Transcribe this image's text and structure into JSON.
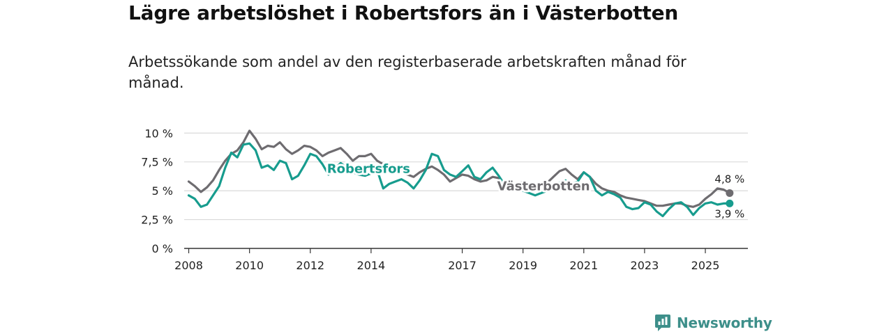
{
  "chart_data": {
    "type": "line",
    "title": "Lägre arbetslöshet i Robertsfors än i Västerbotten",
    "subtitle": "Arbetssökande som andel av den registerbaserade arbetskraften månad för månad.",
    "ylim": [
      0,
      10.8
    ],
    "xlim": [
      2007.85,
      2026.4
    ],
    "y_ticks": [
      0,
      2.5,
      5,
      7.5,
      10
    ],
    "y_tick_labels": [
      "0 %",
      "2,5 %",
      "5 %",
      "7,5 %",
      "10 %"
    ],
    "x_ticks": [
      2008,
      2010,
      2012,
      2014,
      2017,
      2019,
      2021,
      2023,
      2025
    ],
    "x_tick_labels": [
      "2008",
      "2010",
      "2012",
      "2014",
      "2017",
      "2019",
      "2021",
      "2023",
      "2025"
    ],
    "grid": "horizontal",
    "series": [
      {
        "name": "Västerbotten",
        "label": "Västerbotten",
        "color": "#6e6c70",
        "end_label": "4,8 %",
        "x": [
          2008.0,
          2008.2,
          2008.4,
          2008.6,
          2008.8,
          2009.0,
          2009.2,
          2009.4,
          2009.6,
          2009.8,
          2010.0,
          2010.2,
          2010.4,
          2010.6,
          2010.8,
          2011.0,
          2011.2,
          2011.4,
          2011.6,
          2011.8,
          2012.0,
          2012.2,
          2012.4,
          2012.6,
          2012.8,
          2013.0,
          2013.2,
          2013.4,
          2013.6,
          2013.8,
          2014.0,
          2014.2,
          2014.4,
          2014.6,
          2014.8,
          2015.0,
          2015.2,
          2015.4,
          2015.6,
          2015.8,
          2016.0,
          2016.2,
          2016.4,
          2016.6,
          2016.8,
          2017.0,
          2017.2,
          2017.4,
          2017.6,
          2017.8,
          2018.0,
          2018.2,
          2018.4,
          2018.6,
          2018.8,
          2019.0,
          2019.2,
          2019.4,
          2019.6,
          2019.8,
          2020.0,
          2020.2,
          2020.4,
          2020.6,
          2020.8,
          2021.0,
          2021.2,
          2021.4,
          2021.6,
          2021.8,
          2022.0,
          2022.2,
          2022.4,
          2022.6,
          2022.8,
          2023.0,
          2023.2,
          2023.4,
          2023.6,
          2023.8,
          2024.0,
          2024.2,
          2024.4,
          2024.6,
          2024.8,
          2025.0,
          2025.2,
          2025.4,
          2025.6,
          2025.8
        ],
        "values": [
          5.8,
          5.4,
          4.9,
          5.3,
          5.9,
          6.8,
          7.6,
          8.2,
          8.5,
          9.2,
          10.2,
          9.5,
          8.6,
          8.9,
          8.8,
          9.2,
          8.6,
          8.2,
          8.5,
          8.9,
          8.8,
          8.5,
          8.0,
          8.3,
          8.5,
          8.7,
          8.2,
          7.6,
          8.0,
          8.0,
          8.2,
          7.6,
          7.3,
          7.0,
          6.8,
          6.6,
          6.4,
          6.2,
          6.6,
          6.9,
          7.1,
          6.8,
          6.4,
          5.8,
          6.1,
          6.4,
          6.3,
          6.0,
          5.8,
          5.9,
          6.2,
          6.1,
          5.6,
          5.4,
          5.5,
          5.8,
          5.5,
          5.3,
          5.6,
          5.7,
          6.2,
          6.7,
          6.9,
          6.4,
          6.0,
          6.6,
          6.2,
          5.6,
          5.2,
          5.0,
          4.9,
          4.6,
          4.4,
          4.3,
          4.2,
          4.1,
          3.9,
          3.7,
          3.7,
          3.8,
          3.9,
          3.9,
          3.7,
          3.6,
          3.8,
          4.3,
          4.7,
          5.2,
          5.1,
          4.8
        ]
      },
      {
        "name": "Robertsfors",
        "label": "Robertsfors",
        "color": "#179c8e",
        "end_label": "3,9 %",
        "x": [
          2008.0,
          2008.2,
          2008.4,
          2008.6,
          2008.8,
          2009.0,
          2009.2,
          2009.4,
          2009.6,
          2009.8,
          2010.0,
          2010.2,
          2010.4,
          2010.6,
          2010.8,
          2011.0,
          2011.2,
          2011.4,
          2011.6,
          2011.8,
          2012.0,
          2012.2,
          2012.4,
          2012.6,
          2012.8,
          2013.0,
          2013.2,
          2013.4,
          2013.6,
          2013.8,
          2014.0,
          2014.2,
          2014.4,
          2014.6,
          2014.8,
          2015.0,
          2015.2,
          2015.4,
          2015.6,
          2015.8,
          2016.0,
          2016.2,
          2016.4,
          2016.6,
          2016.8,
          2017.0,
          2017.2,
          2017.4,
          2017.6,
          2017.8,
          2018.0,
          2018.2,
          2018.4,
          2018.6,
          2018.8,
          2019.0,
          2019.2,
          2019.4,
          2019.6,
          2019.8,
          2020.0,
          2020.2,
          2020.4,
          2020.6,
          2020.8,
          2021.0,
          2021.2,
          2021.4,
          2021.6,
          2021.8,
          2022.0,
          2022.2,
          2022.4,
          2022.6,
          2022.8,
          2023.0,
          2023.2,
          2023.4,
          2023.6,
          2023.8,
          2024.0,
          2024.2,
          2024.4,
          2024.6,
          2024.8,
          2025.0,
          2025.2,
          2025.4,
          2025.6,
          2025.8
        ],
        "values": [
          4.6,
          4.3,
          3.6,
          3.8,
          4.6,
          5.4,
          7.0,
          8.3,
          7.9,
          9.0,
          9.1,
          8.5,
          7.0,
          7.2,
          6.8,
          7.6,
          7.4,
          6.0,
          6.3,
          7.2,
          8.2,
          8.0,
          7.3,
          6.4,
          6.9,
          7.4,
          7.0,
          6.6,
          6.4,
          6.3,
          6.5,
          6.8,
          5.2,
          5.6,
          5.8,
          6.0,
          5.7,
          5.2,
          5.9,
          6.8,
          8.2,
          8.0,
          6.8,
          6.4,
          6.2,
          6.7,
          7.2,
          6.2,
          6.0,
          6.6,
          7.0,
          6.3,
          5.5,
          5.0,
          5.2,
          5.0,
          4.8,
          4.6,
          4.8,
          5.0,
          5.4,
          5.7,
          5.9,
          5.6,
          5.8,
          6.6,
          6.2,
          5.0,
          4.6,
          4.9,
          4.7,
          4.4,
          3.6,
          3.4,
          3.5,
          4.0,
          3.8,
          3.2,
          2.8,
          3.4,
          3.9,
          4.0,
          3.6,
          2.9,
          3.5,
          3.9,
          4.0,
          3.8,
          3.9,
          3.9
        ]
      }
    ]
  },
  "branding": {
    "name": "Newsworthy"
  }
}
